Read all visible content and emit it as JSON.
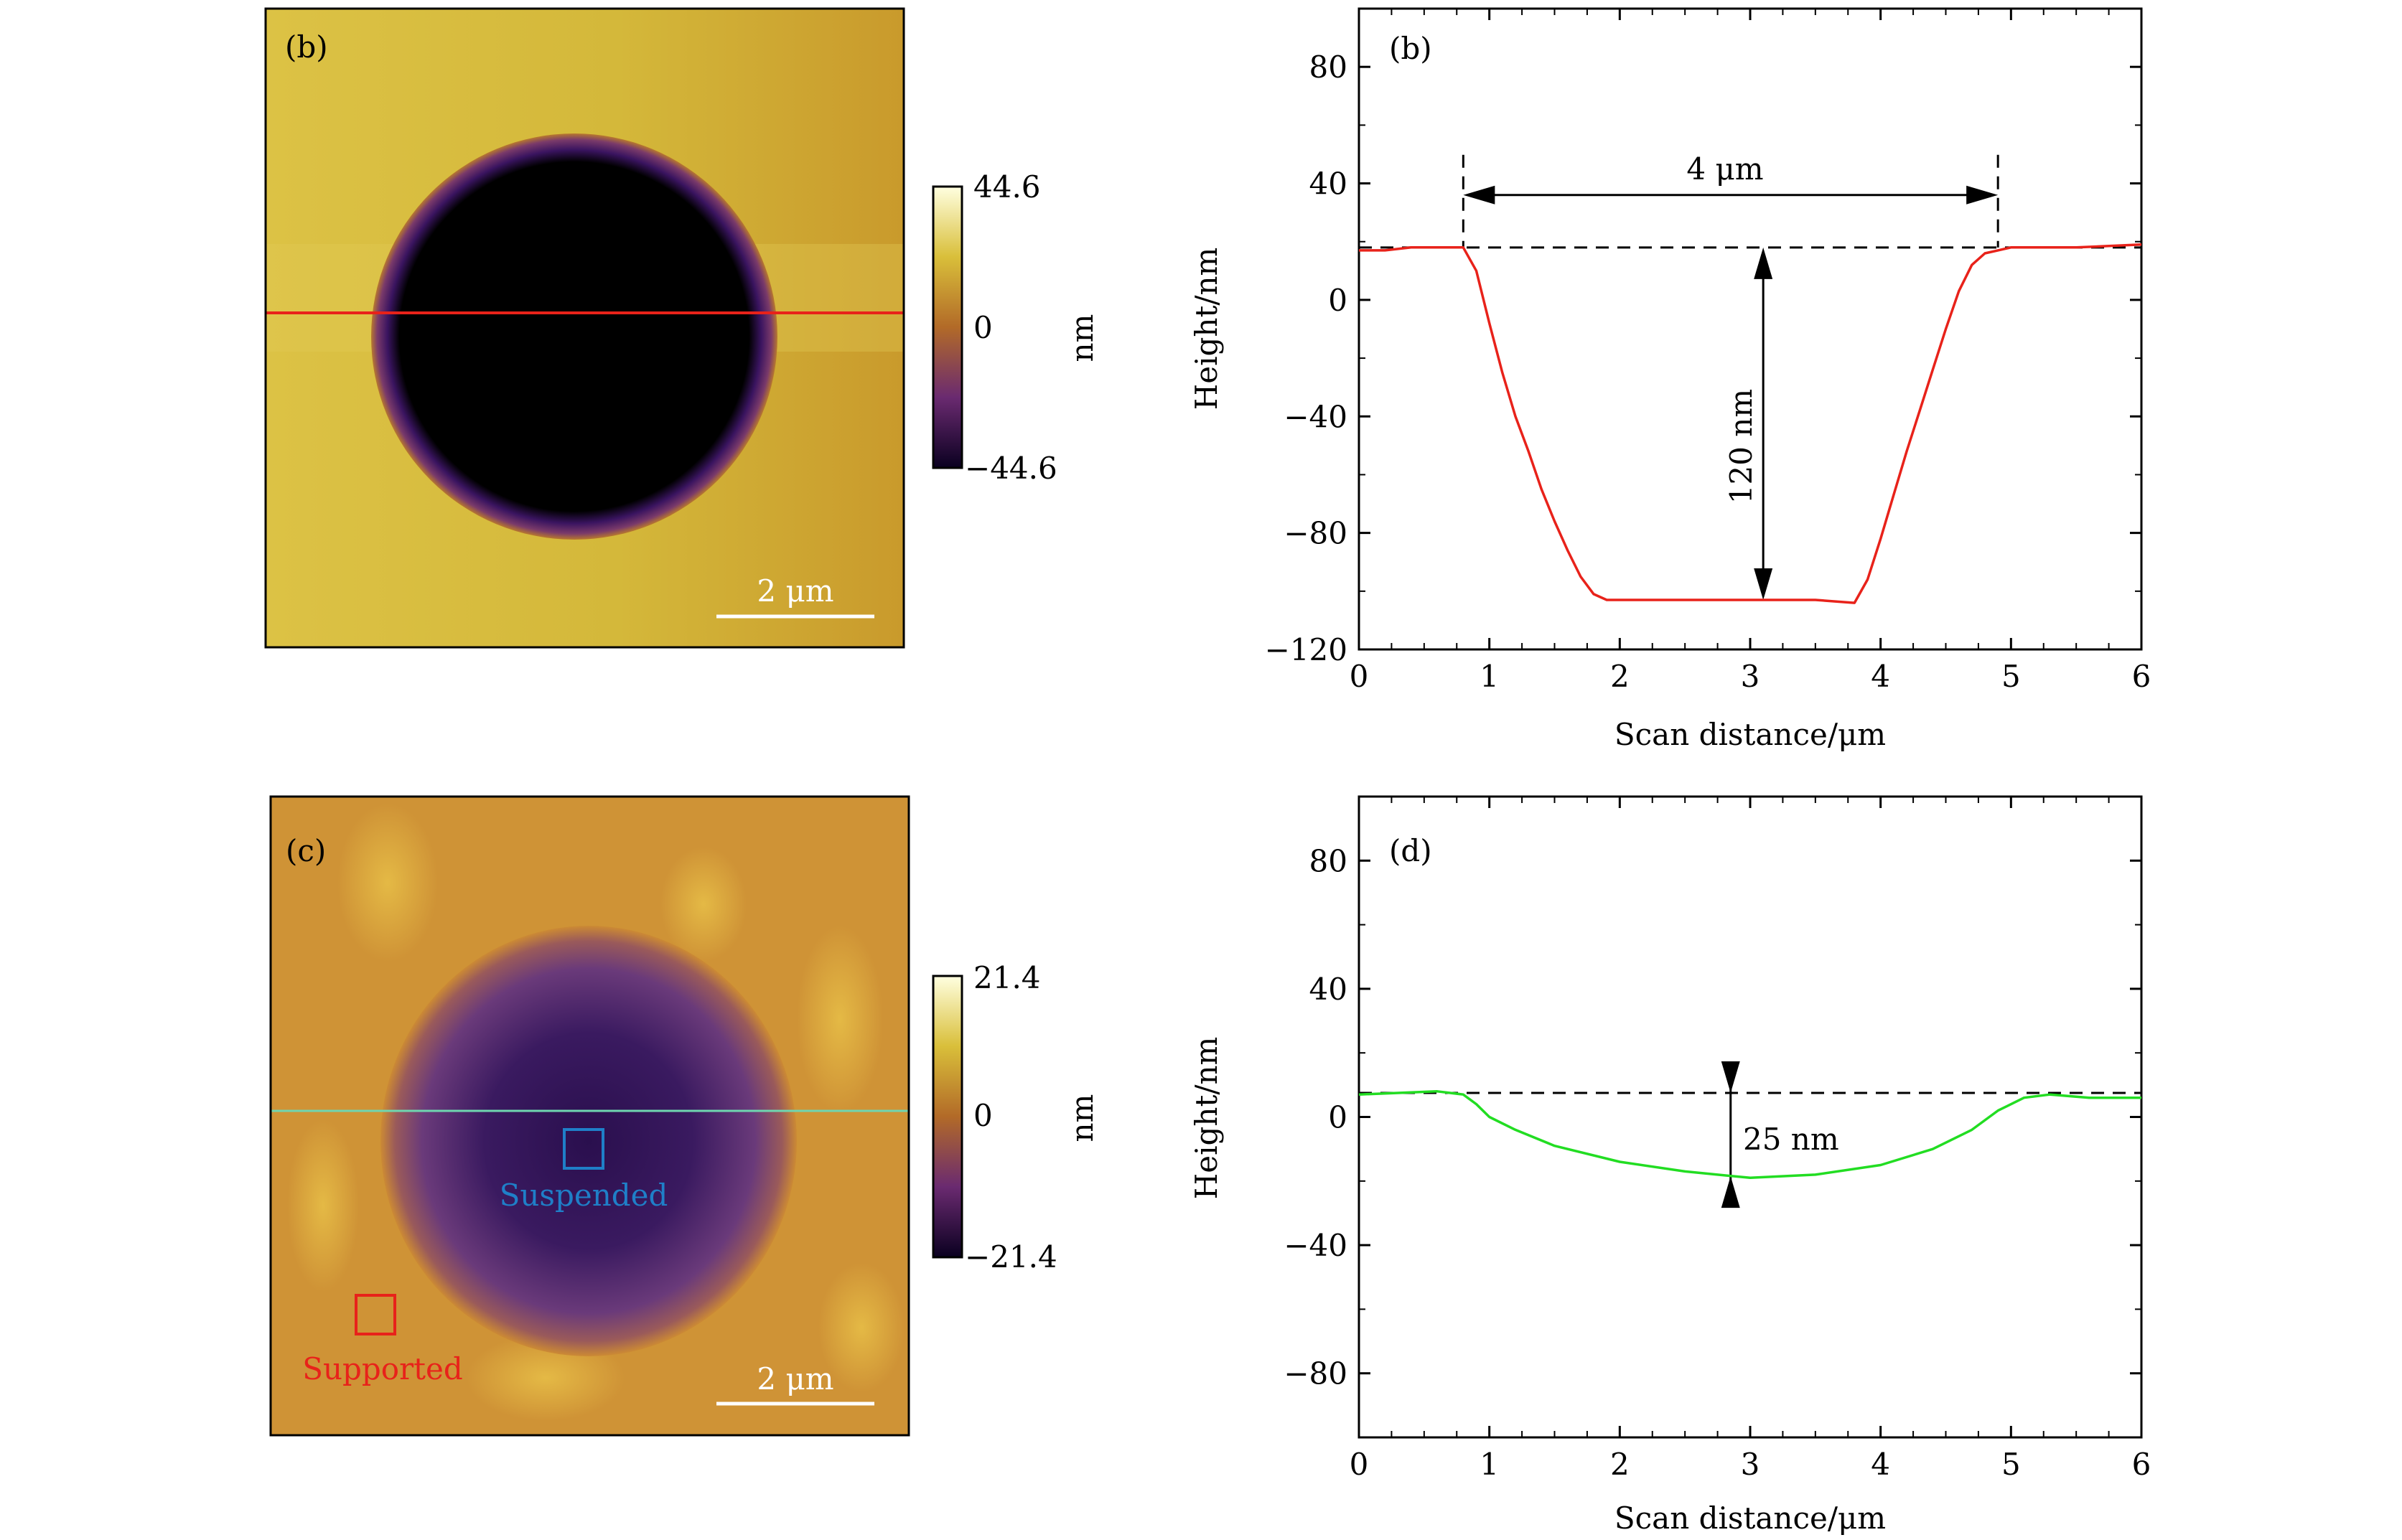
{
  "afm_panels": [
    {
      "panel_label": "(b)",
      "scale_bar_label": "2 μm",
      "colorbar": {
        "max_label": "44.6",
        "mid_label": "0",
        "min_label": "−44.6",
        "unit": "nm",
        "max": 44.6,
        "min": -44.6
      },
      "line_color": "#e8221a",
      "colors": {
        "surface": "#d4b83a",
        "hole": "#000000",
        "rim": "#5a1f6e"
      }
    },
    {
      "panel_label": "(c)",
      "scale_bar_label": "2 μm",
      "colorbar": {
        "max_label": "21.4",
        "mid_label": "0",
        "min_label": "−21.4",
        "unit": "nm",
        "max": 21.4,
        "min": -21.4
      },
      "line_color": "#6fd6b0",
      "markers": [
        {
          "label": "Suspended",
          "color": "#1f7fc8"
        },
        {
          "label": "Supported",
          "color": "#e8221a"
        }
      ],
      "colors": {
        "surface": "#d49a3a",
        "center": "#2a0f4e"
      }
    }
  ],
  "chart_data": [
    {
      "type": "line",
      "panel_label": "(b)",
      "xlabel": "Scan distance/μm",
      "ylabel": "Height/nm",
      "xlim": [
        0,
        6
      ],
      "ylim": [
        -120,
        100
      ],
      "xticks": [
        0,
        1,
        2,
        3,
        4,
        5,
        6
      ],
      "yticks": [
        -120,
        -80,
        -40,
        0,
        40,
        80
      ],
      "series": [
        {
          "color": "#e8221a",
          "x": [
            0,
            0.2,
            0.4,
            0.6,
            0.8,
            0.9,
            1.0,
            1.1,
            1.2,
            1.3,
            1.4,
            1.5,
            1.6,
            1.7,
            1.8,
            1.9,
            2.0,
            2.5,
            3.0,
            3.5,
            3.8,
            3.9,
            4.0,
            4.1,
            4.2,
            4.3,
            4.4,
            4.5,
            4.6,
            4.7,
            4.8,
            4.9,
            5.0,
            5.5,
            6.0
          ],
          "y": [
            17,
            17,
            18,
            18,
            18,
            10,
            -8,
            -25,
            -40,
            -52,
            -65,
            -76,
            -86,
            -95,
            -101,
            -103,
            -103,
            -103,
            -103,
            -103,
            -104,
            -96,
            -82,
            -67,
            -52,
            -38,
            -24,
            -10,
            3,
            12,
            16,
            17,
            18,
            18,
            19
          ]
        }
      ],
      "reference_line": {
        "y": 18,
        "style": "dashed"
      },
      "annotations": [
        {
          "text": "4 μm",
          "type": "horizontal-dimension",
          "x_from": 0.8,
          "x_to": 4.9,
          "y": 36
        },
        {
          "text": "120 nm",
          "type": "vertical-dimension",
          "x": 3.1,
          "y_from": 18,
          "y_to": -103
        }
      ]
    },
    {
      "type": "line",
      "panel_label": "(d)",
      "xlabel": "Scan distance/μm",
      "ylabel": "Height/nm",
      "xlim": [
        0,
        6
      ],
      "ylim": [
        -100,
        100
      ],
      "xticks": [
        0,
        1,
        2,
        3,
        4,
        5,
        6
      ],
      "yticks": [
        -80,
        -40,
        0,
        40,
        80
      ],
      "series": [
        {
          "color": "#22dd22",
          "x": [
            0,
            0.3,
            0.6,
            0.8,
            0.9,
            1.0,
            1.2,
            1.5,
            2.0,
            2.5,
            3.0,
            3.5,
            4.0,
            4.4,
            4.7,
            4.9,
            5.1,
            5.3,
            5.6,
            6.0
          ],
          "y": [
            7,
            7.5,
            8,
            7,
            4,
            0,
            -4,
            -9,
            -14,
            -17,
            -19,
            -18,
            -15,
            -10,
            -4,
            2,
            6,
            7,
            6,
            6
          ]
        }
      ],
      "reference_line": {
        "y": 7.5,
        "style": "dashed"
      },
      "annotations": [
        {
          "text": "25 nm",
          "type": "vertical-dimension",
          "x": 2.85,
          "y_from": 7.5,
          "y_to": -18.5
        }
      ]
    }
  ]
}
